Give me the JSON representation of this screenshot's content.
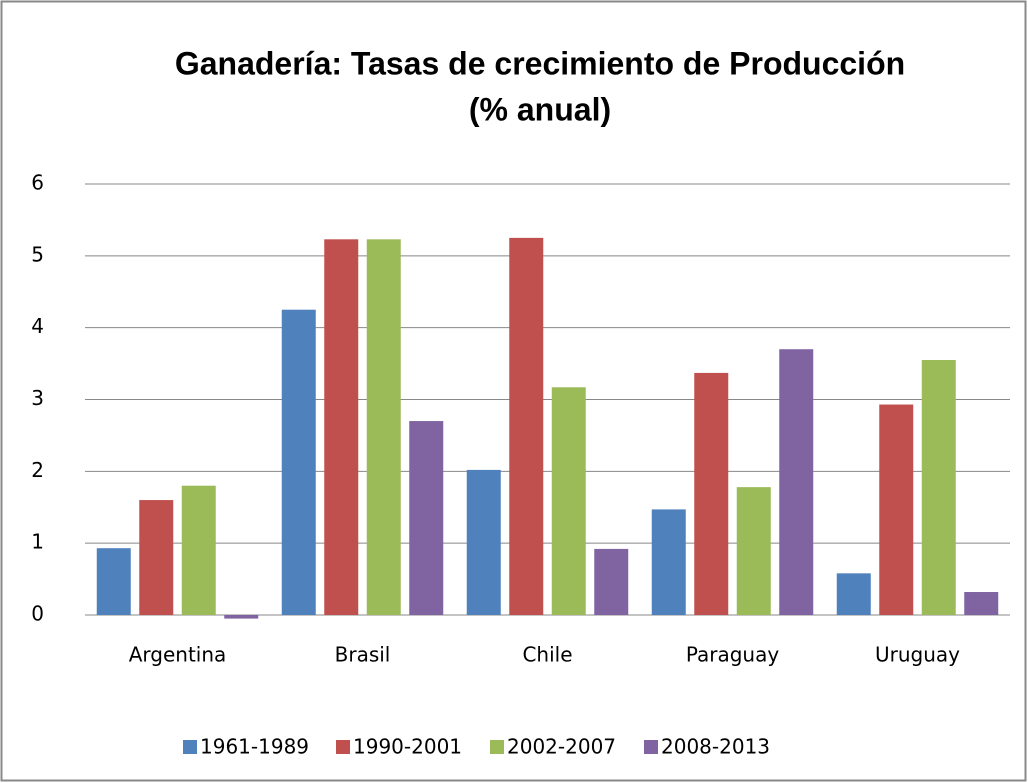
{
  "chart_data": {
    "type": "bar",
    "title": "Ganadería: Tasas de crecimiento de Producción",
    "subtitle": "(% anual)",
    "categories": [
      "Argentina",
      "Brasil",
      "Chile",
      "Paraguay",
      "Uruguay"
    ],
    "series": [
      {
        "name": "1961-1989",
        "color": "#4f81bd",
        "values": [
          0.93,
          4.25,
          2.02,
          1.47,
          0.58
        ]
      },
      {
        "name": "1990-2001",
        "color": "#c0504d",
        "values": [
          1.6,
          5.23,
          5.25,
          3.37,
          2.93
        ]
      },
      {
        "name": "2002-2007",
        "color": "#9bbb59",
        "values": [
          1.8,
          5.23,
          3.17,
          1.78,
          3.55
        ]
      },
      {
        "name": "2008-2013",
        "color": "#8064a2",
        "values": [
          -0.05,
          2.7,
          0.92,
          3.7,
          0.32
        ]
      }
    ],
    "ylim": [
      0,
      6
    ],
    "yticks": [
      0,
      1,
      2,
      3,
      4,
      5,
      6
    ],
    "grid": true,
    "legend": "bottom"
  }
}
